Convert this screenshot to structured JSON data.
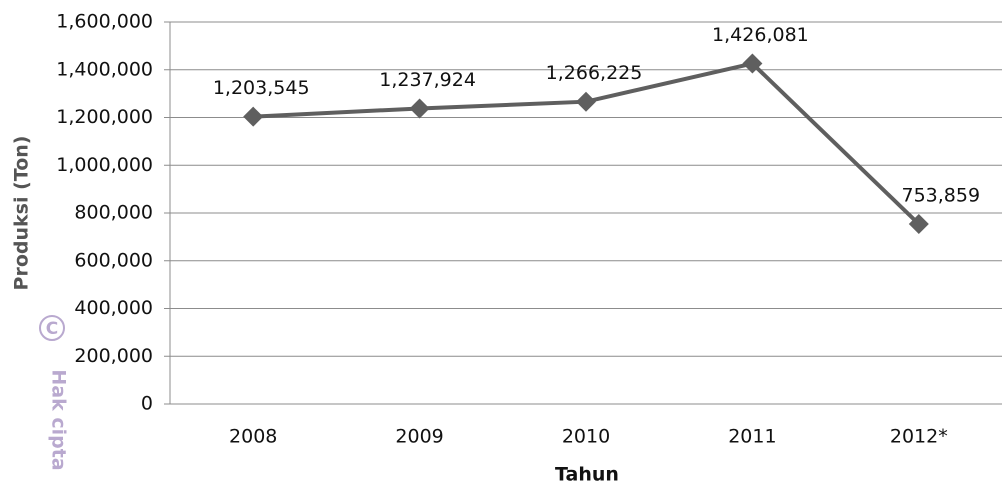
{
  "chart_data": {
    "type": "line",
    "x_label": "Tahun",
    "y_label": "Produksi (Ton)",
    "watermark": "Hak cipta",
    "watermark_icon": "C",
    "categories": [
      "2008",
      "2009",
      "2010",
      "2011",
      "2012*"
    ],
    "series": [
      {
        "name": "Produksi",
        "color": "#5f5f5f",
        "values": [
          1203545,
          1237924,
          1266225,
          1426081,
          753859
        ],
        "value_labels": [
          "1,203,545",
          "1,237,924",
          "1,266,225",
          "1,426,081",
          "753,859"
        ]
      }
    ],
    "ylim": [
      0,
      1600000
    ],
    "yticks": [
      0,
      {
        "value": 200000,
        "label": "200,000"
      },
      {
        "value": 400000,
        "label": "400,000"
      },
      {
        "value": 600000,
        "label": "600,000"
      },
      {
        "value": 800000,
        "label": "800,000"
      },
      {
        "value": 1000000,
        "label": "1,000,000"
      },
      {
        "value": 1200000,
        "label": "1,200,000"
      },
      {
        "value": 1400000,
        "label": "1,400,000"
      },
      {
        "value": 1600000,
        "label": "1,600,000"
      }
    ],
    "grid": true
  }
}
